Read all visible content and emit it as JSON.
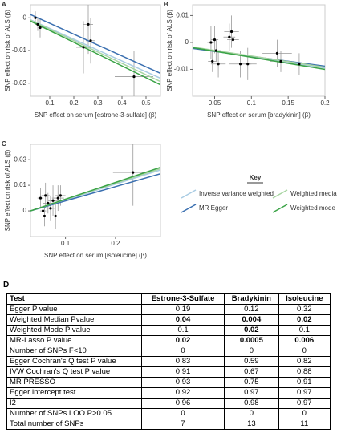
{
  "chart_data": [
    {
      "type": "scatter",
      "panel": "A",
      "xlabel": "SNP effect on serum [estrone-3-sulfate] (β)",
      "ylabel": "SNP effect on risk of ALS (β)",
      "xlim": [
        0.02,
        0.56
      ],
      "xticks": [
        0.1,
        0.2,
        0.3,
        0.4,
        0.5
      ],
      "ylim": [
        -0.024,
        0.004
      ],
      "yticks": [
        -0.02,
        -0.01,
        0
      ],
      "x": [
        0.04,
        0.05,
        0.06,
        0.24,
        0.26,
        0.27,
        0.45
      ],
      "values": [
        0.0,
        -0.002,
        -0.003,
        -0.009,
        -0.002,
        -0.007,
        -0.018
      ],
      "x_err": [
        0.012,
        0.01,
        0.01,
        0.03,
        0.02,
        0.02,
        0.08
      ],
      "y_err": [
        0.002,
        0.002,
        0.003,
        0.008,
        0.009,
        0.007,
        0.008
      ],
      "fit_x": [
        0.02,
        0.56
      ],
      "fits": [
        {
          "values": [
            -0.0006,
            -0.0185
          ]
        },
        {
          "values": [
            0.001,
            -0.017
          ]
        },
        {
          "values": [
            -0.0007,
            -0.0195
          ]
        },
        {
          "values": [
            -0.001,
            -0.0205
          ]
        }
      ]
    },
    {
      "type": "scatter",
      "panel": "B",
      "xlabel": "SNP effect on serum [bradykinin] (β)",
      "ylabel": "SNP effect on risk of ALS (β)",
      "xlim": [
        0.02,
        0.2
      ],
      "xticks": [
        0.05,
        0.1,
        0.15,
        0.2
      ],
      "ylim": [
        -0.02,
        0.014
      ],
      "yticks": [
        -0.01,
        0,
        0.01
      ],
      "x": [
        0.045,
        0.047,
        0.05,
        0.052,
        0.055,
        0.07,
        0.073,
        0.075,
        0.085,
        0.095,
        0.135,
        0.14,
        0.165
      ],
      "values": [
        0.0,
        -0.007,
        0.001,
        -0.003,
        -0.008,
        0.002,
        0.004,
        0.001,
        -0.008,
        -0.008,
        -0.004,
        -0.007,
        -0.008
      ],
      "x_err": [
        0.005,
        0.006,
        0.005,
        0.006,
        0.01,
        0.008,
        0.01,
        0.008,
        0.015,
        0.012,
        0.02,
        0.015,
        0.01
      ],
      "y_err": [
        0.006,
        0.004,
        0.005,
        0.004,
        0.005,
        0.005,
        0.006,
        0.004,
        0.005,
        0.006,
        0.005,
        0.004,
        0.004
      ],
      "fit_x": [
        0.02,
        0.2
      ],
      "fits": [
        {
          "values": [
            -0.0018,
            -0.0095
          ]
        },
        {
          "values": [
            -0.0022,
            -0.0088
          ]
        },
        {
          "values": [
            -0.0017,
            -0.0092
          ]
        },
        {
          "values": [
            -0.0019,
            -0.01
          ]
        }
      ]
    },
    {
      "type": "scatter",
      "panel": "C",
      "xlabel": "SNP effect on serum [isoleucine] (β)",
      "ylabel": "SNP effect on risk of ALS (β)",
      "xlim": [
        0.03,
        0.29
      ],
      "xticks": [
        0.1,
        0.2
      ],
      "ylim": [
        -0.01,
        0.026
      ],
      "yticks": [
        0,
        0.01,
        0.02
      ],
      "x": [
        0.05,
        0.055,
        0.058,
        0.06,
        0.065,
        0.07,
        0.075,
        0.08,
        0.085,
        0.09,
        0.235
      ],
      "values": [
        0.005,
        0.0,
        -0.002,
        0.006,
        0.003,
        0.001,
        0.004,
        -0.002,
        0.005,
        0.006,
        0.015
      ],
      "x_err": [
        0.006,
        0.006,
        0.005,
        0.008,
        0.01,
        0.008,
        0.01,
        0.01,
        0.012,
        0.01,
        0.04
      ],
      "y_err": [
        0.004,
        0.004,
        0.004,
        0.005,
        0.004,
        0.005,
        0.006,
        0.005,
        0.005,
        0.004,
        0.013
      ],
      "fit_x": [
        0.03,
        0.29
      ],
      "fits": [
        {
          "values": [
            0.0,
            0.016
          ]
        },
        {
          "values": [
            0.0,
            0.0145
          ]
        },
        {
          "values": [
            0.0,
            0.0165
          ]
        },
        {
          "values": [
            0.0,
            0.017
          ]
        }
      ]
    }
  ],
  "key": {
    "title": "Key",
    "entries": [
      {
        "name": "Inverse variance weighted",
        "color": "#a9cce3"
      },
      {
        "name": "MR Egger",
        "color": "#3a6fb0"
      },
      {
        "name": "Weighted median",
        "color": "#a8d5a2"
      },
      {
        "name": "Weighted mode",
        "color": "#3aa346"
      }
    ]
  },
  "table": {
    "panel": "D",
    "header": [
      "Test",
      "Estrone-3-Sulfate",
      "Bradykinin",
      "Isoleucine"
    ],
    "rows": [
      [
        "Egger P value",
        "0.19",
        "0.12",
        "0.32"
      ],
      [
        "Weighted Median Pvalue",
        "0.04",
        "0.004",
        "0.02"
      ],
      [
        "Weighted Mode P value",
        "0.1",
        "0.02",
        "0.1"
      ],
      [
        "MR-Lasso P value",
        "0.02",
        "0.0005",
        "0.006"
      ],
      [
        "Number of SNPs F<10",
        "0",
        "0",
        "0"
      ],
      [
        "Egger Cochran's Q test P value",
        "0.83",
        "0.59",
        "0.82"
      ],
      [
        "IVW Cochran's Q test P value",
        "0.91",
        "0.67",
        "0.88"
      ],
      [
        "MR PRESSO",
        "0.93",
        "0.75",
        "0.91"
      ],
      [
        "Egger intercept test",
        "0.92",
        "0.97",
        "0.97"
      ],
      [
        "I2",
        "0.96",
        "0.98",
        "0.97"
      ],
      [
        "Number of SNPs LOO P>0.05",
        "0",
        "0",
        "0"
      ],
      [
        "Total number of SNPs",
        "7",
        "13",
        "11"
      ]
    ],
    "bold_cells": [
      [
        1,
        1
      ],
      [
        1,
        2
      ],
      [
        1,
        3
      ],
      [
        2,
        2
      ],
      [
        3,
        1
      ],
      [
        3,
        2
      ],
      [
        3,
        3
      ]
    ]
  }
}
